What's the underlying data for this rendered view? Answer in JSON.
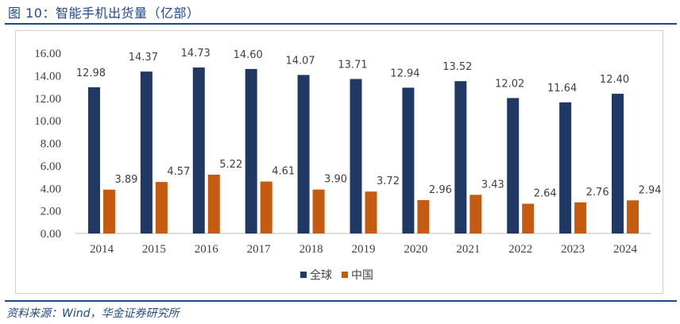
{
  "header": {
    "title": "图 10：智能手机出货量（亿部）"
  },
  "footer": {
    "source": "资料来源：Wind，华金证券研究所"
  },
  "colors": {
    "global": "#203864",
    "china": "#c55a11",
    "brand": "#1e4a8c"
  },
  "chart_data": {
    "type": "bar",
    "title": "",
    "xlabel": "",
    "ylabel": "",
    "ylim": [
      0,
      16
    ],
    "yticks": [
      "0.00",
      "2.00",
      "4.00",
      "6.00",
      "8.00",
      "10.00",
      "12.00",
      "14.00",
      "16.00"
    ],
    "grid": false,
    "legend_position": "bottom",
    "categories": [
      "2014",
      "2015",
      "2016",
      "2017",
      "2018",
      "2019",
      "2020",
      "2021",
      "2022",
      "2023",
      "2024"
    ],
    "series": [
      {
        "name": "全球",
        "values": [
          12.98,
          14.37,
          14.73,
          14.6,
          14.07,
          13.71,
          12.94,
          13.52,
          12.02,
          11.64,
          12.4
        ],
        "labels": [
          "12.98",
          "14.37",
          "14.73",
          "14.60",
          "14.07",
          "13.71",
          "12.94",
          "13.52",
          "12.02",
          "11.64",
          "12.40"
        ]
      },
      {
        "name": "中国",
        "values": [
          3.89,
          4.57,
          5.22,
          4.61,
          3.9,
          3.72,
          2.96,
          3.43,
          2.64,
          2.76,
          2.94
        ],
        "labels": [
          "3.89",
          "4.57",
          "5.22",
          "4.61",
          "3.90",
          "3.72",
          "2.96",
          "3.43",
          "2.64",
          "2.76",
          "2.94"
        ]
      }
    ]
  }
}
